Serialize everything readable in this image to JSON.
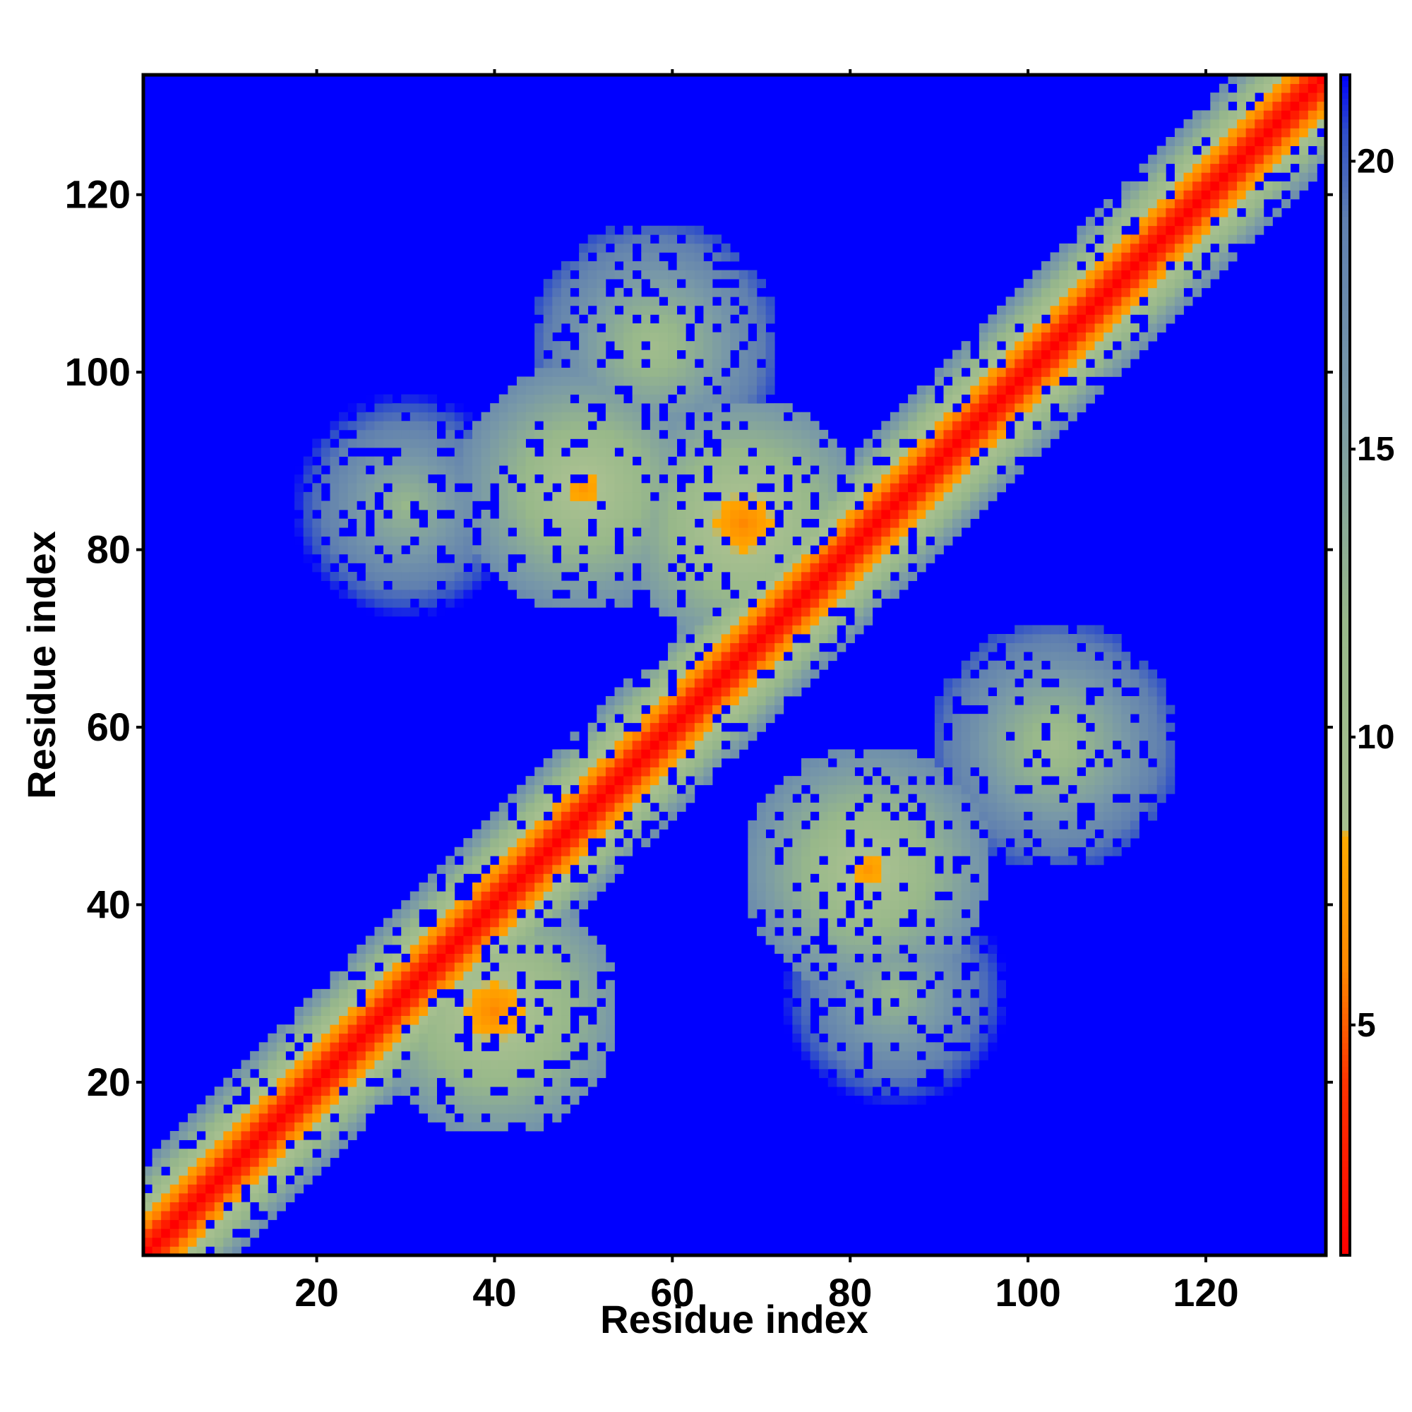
{
  "chart_data": {
    "type": "heatmap",
    "title": "",
    "xlabel": "Residue index",
    "ylabel": "Residue index",
    "n_residues": 133,
    "xlim": [
      1,
      133
    ],
    "ylim": [
      1,
      133
    ],
    "x_ticks": [
      20,
      40,
      60,
      80,
      100,
      120
    ],
    "y_ticks": [
      20,
      40,
      60,
      80,
      100,
      120
    ],
    "colorbar": {
      "range": [
        1,
        21.5
      ],
      "ticks": [
        5,
        10,
        15,
        20
      ],
      "stops": [
        {
          "value": 1.0,
          "color": "#ff0000"
        },
        {
          "value": 4.0,
          "color": "#ff3300"
        },
        {
          "value": 6.0,
          "color": "#ff8800"
        },
        {
          "value": 8.3,
          "color": "#ffaa00"
        },
        {
          "value": 8.4,
          "color": "#a8c090"
        },
        {
          "value": 12.0,
          "color": "#98b88a"
        },
        {
          "value": 16.0,
          "color": "#7898a8"
        },
        {
          "value": 19.0,
          "color": "#5f7fb0"
        },
        {
          "value": 20.5,
          "color": "#3050c8"
        },
        {
          "value": 21.5,
          "color": "#0000ff"
        }
      ]
    },
    "background_value": 21.5,
    "diagonal_band": {
      "value_on_diagonal": 1,
      "width_residues": 10
    },
    "contact_regions": [
      {
        "residue_i": 40,
        "residue_j": 28,
        "value": 6,
        "note": "anti-parallel contact near residues 25-45"
      },
      {
        "residue_i": 50,
        "residue_j": 87,
        "value": 7,
        "note": "arc feature residues 40-55 vs 78-93"
      },
      {
        "residue_i": 68,
        "residue_j": 83,
        "value": 6,
        "note": "anti-diagonal cross near 60-90"
      },
      {
        "residue_i": 82,
        "residue_j": 44,
        "value": 7,
        "note": "arc feature residues 78-93 vs 38-50"
      },
      {
        "residue_i": 58,
        "residue_j": 103,
        "value": 10,
        "note": "upper-left cluster"
      },
      {
        "residue_i": 103,
        "residue_j": 58,
        "value": 10,
        "note": "lower-right cluster"
      },
      {
        "residue_i": 30,
        "residue_j": 85,
        "value": 12,
        "note": "upper-left sparse cluster"
      },
      {
        "residue_i": 85,
        "residue_j": 30,
        "value": 12,
        "note": "lower-right sparse cluster"
      }
    ]
  }
}
